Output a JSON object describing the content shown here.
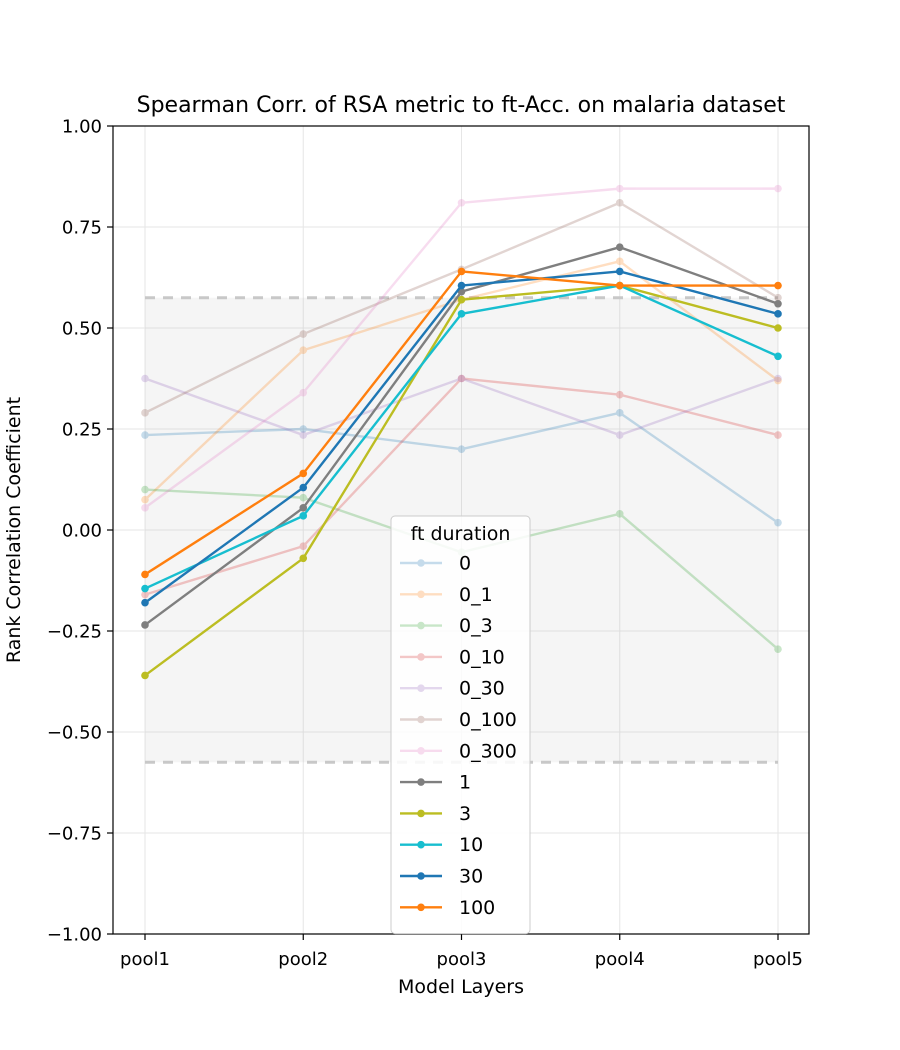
{
  "chart_data": {
    "type": "line",
    "title": "Spearman Corr. of RSA metric to ft-Acc. on malaria dataset",
    "xlabel": "Model Layers",
    "ylabel": "Rank Correlation Coefficient",
    "categories": [
      "pool1",
      "pool2",
      "pool3",
      "pool4",
      "pool5"
    ],
    "ylim": [
      -1.0,
      1.0
    ],
    "yticks": [
      -1.0,
      -0.75,
      -0.5,
      -0.25,
      0.0,
      0.25,
      0.5,
      0.75,
      1.0
    ],
    "ytick_labels": [
      "−1.00",
      "−0.75",
      "−0.50",
      "−0.25",
      "0.00",
      "0.25",
      "0.50",
      "0.75",
      "1.00"
    ],
    "grid": true,
    "significance_band": [
      -0.575,
      0.575
    ],
    "legend": {
      "title": "ft duration",
      "placement": "lower-center"
    },
    "series": [
      {
        "name": "0",
        "values": [
          0.235,
          0.25,
          0.2,
          0.29,
          0.018
        ],
        "color": "#1f77b4",
        "alpha": 0.25
      },
      {
        "name": "0_1",
        "values": [
          0.075,
          0.445,
          0.57,
          0.665,
          0.37
        ],
        "color": "#ff7f0e",
        "alpha": 0.25
      },
      {
        "name": "0_3",
        "values": [
          0.1,
          0.08,
          -0.055,
          0.04,
          -0.295
        ],
        "color": "#2ca02c",
        "alpha": 0.25
      },
      {
        "name": "0_10",
        "values": [
          -0.16,
          -0.04,
          0.375,
          0.335,
          0.235
        ],
        "color": "#d62728",
        "alpha": 0.25
      },
      {
        "name": "0_30",
        "values": [
          0.375,
          0.235,
          0.375,
          0.235,
          0.375
        ],
        "color": "#9467bd",
        "alpha": 0.25
      },
      {
        "name": "0_100",
        "values": [
          0.29,
          0.485,
          0.645,
          0.81,
          0.575
        ],
        "color": "#8c564b",
        "alpha": 0.25
      },
      {
        "name": "0_300",
        "values": [
          0.055,
          0.34,
          0.81,
          0.845,
          0.845
        ],
        "color": "#e377c2",
        "alpha": 0.25
      },
      {
        "name": "1",
        "values": [
          -0.235,
          0.055,
          0.59,
          0.7,
          0.56
        ],
        "color": "#7f7f7f",
        "alpha": 1.0
      },
      {
        "name": "3",
        "values": [
          -0.36,
          -0.07,
          0.57,
          0.605,
          0.5
        ],
        "color": "#bcbd22",
        "alpha": 1.0
      },
      {
        "name": "10",
        "values": [
          -0.145,
          0.035,
          0.535,
          0.605,
          0.43
        ],
        "color": "#17becf",
        "alpha": 1.0
      },
      {
        "name": "30",
        "values": [
          -0.18,
          0.105,
          0.605,
          0.64,
          0.535
        ],
        "color": "#1f77b4",
        "alpha": 1.0
      },
      {
        "name": "100",
        "values": [
          -0.11,
          0.14,
          0.64,
          0.605,
          0.605
        ],
        "color": "#ff7f0e",
        "alpha": 1.0
      }
    ]
  }
}
